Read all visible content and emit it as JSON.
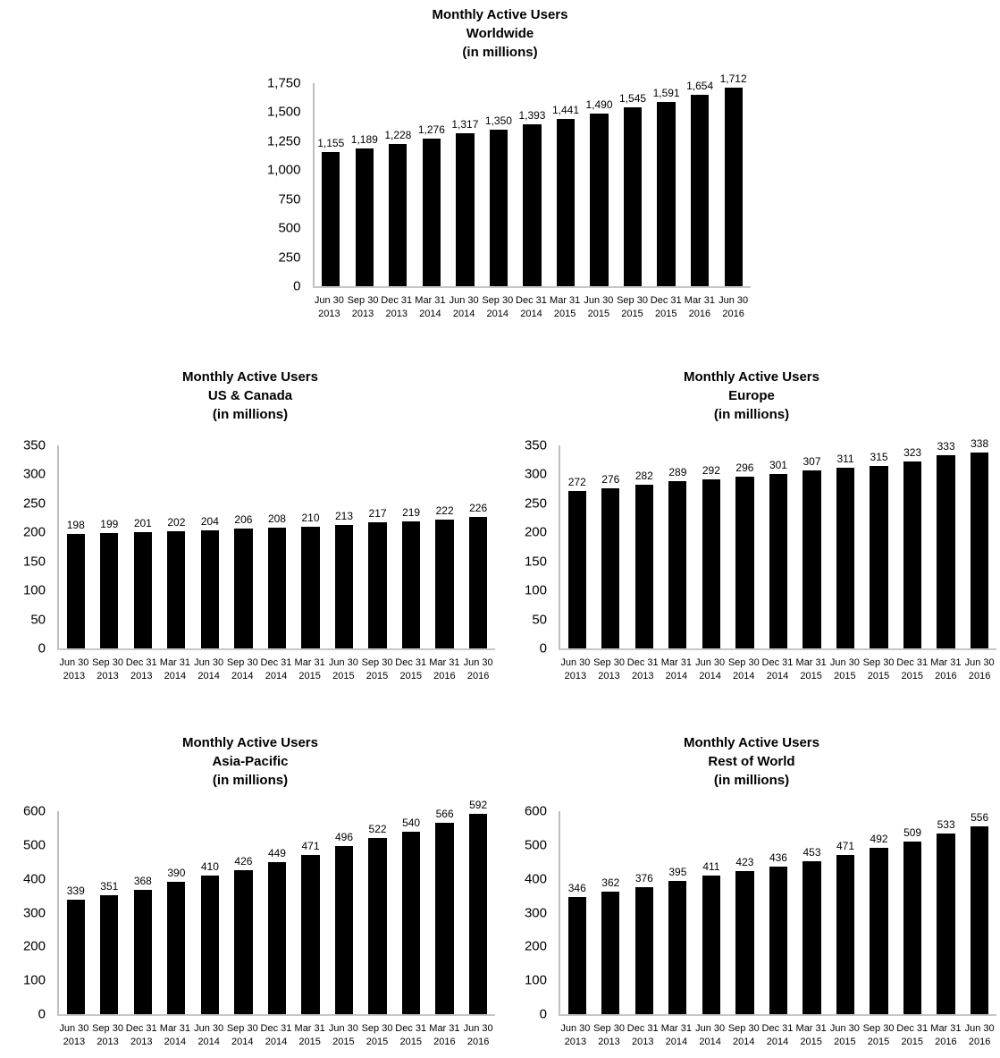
{
  "page": {
    "background": "#ffffff",
    "text_color": "#000000"
  },
  "chart_data": [
    {
      "type": "bar",
      "title_lines": [
        "Monthly Active Users",
        "Worldwide",
        "(in millions)"
      ],
      "categories": [
        [
          "Jun 30",
          "2013"
        ],
        [
          "Sep 30",
          "2013"
        ],
        [
          "Dec 31",
          "2013"
        ],
        [
          "Mar 31",
          "2014"
        ],
        [
          "Jun 30",
          "2014"
        ],
        [
          "Sep 30",
          "2014"
        ],
        [
          "Dec 31",
          "2014"
        ],
        [
          "Mar 31",
          "2015"
        ],
        [
          "Jun 30",
          "2015"
        ],
        [
          "Sep 30",
          "2015"
        ],
        [
          "Dec 31",
          "2015"
        ],
        [
          "Mar 31",
          "2016"
        ],
        [
          "Jun 30",
          "2016"
        ]
      ],
      "values": [
        1155,
        1189,
        1228,
        1276,
        1317,
        1350,
        1393,
        1441,
        1490,
        1545,
        1591,
        1654,
        1712
      ],
      "value_labels": [
        "1,155",
        "1,189",
        "1,228",
        "1,276",
        "1,317",
        "1,350",
        "1,393",
        "1,441",
        "1,490",
        "1,545",
        "1,591",
        "1,654",
        "1,712"
      ],
      "ylim": [
        0,
        1750
      ],
      "ytick_step": 250,
      "yticks": [
        "1,750",
        "1,500",
        "1,250",
        "1,000",
        "750",
        "500",
        "250",
        "0"
      ],
      "xlabel": "",
      "ylabel": "",
      "grid": false,
      "legend_position": "none",
      "bar_color": "#000000",
      "axis_color": "#bfbfbf"
    },
    {
      "type": "bar",
      "title_lines": [
        "Monthly Active Users",
        "US & Canada",
        "(in millions)"
      ],
      "categories": [
        [
          "Jun 30",
          "2013"
        ],
        [
          "Sep 30",
          "2013"
        ],
        [
          "Dec 31",
          "2013"
        ],
        [
          "Mar 31",
          "2014"
        ],
        [
          "Jun 30",
          "2014"
        ],
        [
          "Sep 30",
          "2014"
        ],
        [
          "Dec 31",
          "2014"
        ],
        [
          "Mar 31",
          "2015"
        ],
        [
          "Jun 30",
          "2015"
        ],
        [
          "Sep 30",
          "2015"
        ],
        [
          "Dec 31",
          "2015"
        ],
        [
          "Mar 31",
          "2016"
        ],
        [
          "Jun 30",
          "2016"
        ]
      ],
      "values": [
        198,
        199,
        201,
        202,
        204,
        206,
        208,
        210,
        213,
        217,
        219,
        222,
        226
      ],
      "value_labels": [
        "198",
        "199",
        "201",
        "202",
        "204",
        "206",
        "208",
        "210",
        "213",
        "217",
        "219",
        "222",
        "226"
      ],
      "ylim": [
        0,
        350
      ],
      "ytick_step": 50,
      "yticks": [
        "350",
        "300",
        "250",
        "200",
        "150",
        "100",
        "50",
        "0"
      ],
      "xlabel": "",
      "ylabel": "",
      "grid": false,
      "legend_position": "none",
      "bar_color": "#000000",
      "axis_color": "#bfbfbf"
    },
    {
      "type": "bar",
      "title_lines": [
        "Monthly Active Users",
        "Europe",
        "(in millions)"
      ],
      "categories": [
        [
          "Jun 30",
          "2013"
        ],
        [
          "Sep 30",
          "2013"
        ],
        [
          "Dec 31",
          "2013"
        ],
        [
          "Mar 31",
          "2014"
        ],
        [
          "Jun 30",
          "2014"
        ],
        [
          "Sep 30",
          "2014"
        ],
        [
          "Dec 31",
          "2014"
        ],
        [
          "Mar 31",
          "2015"
        ],
        [
          "Jun 30",
          "2015"
        ],
        [
          "Sep 30",
          "2015"
        ],
        [
          "Dec 31",
          "2015"
        ],
        [
          "Mar 31",
          "2016"
        ],
        [
          "Jun 30",
          "2016"
        ]
      ],
      "values": [
        272,
        276,
        282,
        289,
        292,
        296,
        301,
        307,
        311,
        315,
        323,
        333,
        338
      ],
      "value_labels": [
        "272",
        "276",
        "282",
        "289",
        "292",
        "296",
        "301",
        "307",
        "311",
        "315",
        "323",
        "333",
        "338"
      ],
      "ylim": [
        0,
        350
      ],
      "ytick_step": 50,
      "yticks": [
        "350",
        "300",
        "250",
        "200",
        "150",
        "100",
        "50",
        "0"
      ],
      "xlabel": "",
      "ylabel": "",
      "grid": false,
      "legend_position": "none",
      "bar_color": "#000000",
      "axis_color": "#bfbfbf"
    },
    {
      "type": "bar",
      "title_lines": [
        "Monthly Active Users",
        "Asia-Pacific",
        "(in millions)"
      ],
      "categories": [
        [
          "Jun 30",
          "2013"
        ],
        [
          "Sep 30",
          "2013"
        ],
        [
          "Dec 31",
          "2013"
        ],
        [
          "Mar 31",
          "2014"
        ],
        [
          "Jun 30",
          "2014"
        ],
        [
          "Sep 30",
          "2014"
        ],
        [
          "Dec 31",
          "2014"
        ],
        [
          "Mar 31",
          "2015"
        ],
        [
          "Jun 30",
          "2015"
        ],
        [
          "Sep 30",
          "2015"
        ],
        [
          "Dec 31",
          "2015"
        ],
        [
          "Mar 31",
          "2016"
        ],
        [
          "Jun 30",
          "2016"
        ]
      ],
      "values": [
        339,
        351,
        368,
        390,
        410,
        426,
        449,
        471,
        496,
        522,
        540,
        566,
        592
      ],
      "value_labels": [
        "339",
        "351",
        "368",
        "390",
        "410",
        "426",
        "449",
        "471",
        "496",
        "522",
        "540",
        "566",
        "592"
      ],
      "ylim": [
        0,
        600
      ],
      "ytick_step": 100,
      "yticks": [
        "600",
        "500",
        "400",
        "300",
        "200",
        "100",
        "0"
      ],
      "xlabel": "",
      "ylabel": "",
      "grid": false,
      "legend_position": "none",
      "bar_color": "#000000",
      "axis_color": "#bfbfbf"
    },
    {
      "type": "bar",
      "title_lines": [
        "Monthly Active Users",
        "Rest of World",
        "(in millions)"
      ],
      "categories": [
        [
          "Jun 30",
          "2013"
        ],
        [
          "Sep 30",
          "2013"
        ],
        [
          "Dec 31",
          "2013"
        ],
        [
          "Mar 31",
          "2014"
        ],
        [
          "Jun 30",
          "2014"
        ],
        [
          "Sep 30",
          "2014"
        ],
        [
          "Dec 31",
          "2014"
        ],
        [
          "Mar 31",
          "2015"
        ],
        [
          "Jun 30",
          "2015"
        ],
        [
          "Sep 30",
          "2015"
        ],
        [
          "Dec 31",
          "2015"
        ],
        [
          "Mar 31",
          "2016"
        ],
        [
          "Jun 30",
          "2016"
        ]
      ],
      "values": [
        346,
        362,
        376,
        395,
        411,
        423,
        436,
        453,
        471,
        492,
        509,
        533,
        556
      ],
      "value_labels": [
        "346",
        "362",
        "376",
        "395",
        "411",
        "423",
        "436",
        "453",
        "471",
        "492",
        "509",
        "533",
        "556"
      ],
      "ylim": [
        0,
        600
      ],
      "ytick_step": 100,
      "yticks": [
        "600",
        "500",
        "400",
        "300",
        "200",
        "100",
        "0"
      ],
      "xlabel": "",
      "ylabel": "",
      "grid": false,
      "legend_position": "none",
      "bar_color": "#000000",
      "axis_color": "#bfbfbf"
    }
  ]
}
